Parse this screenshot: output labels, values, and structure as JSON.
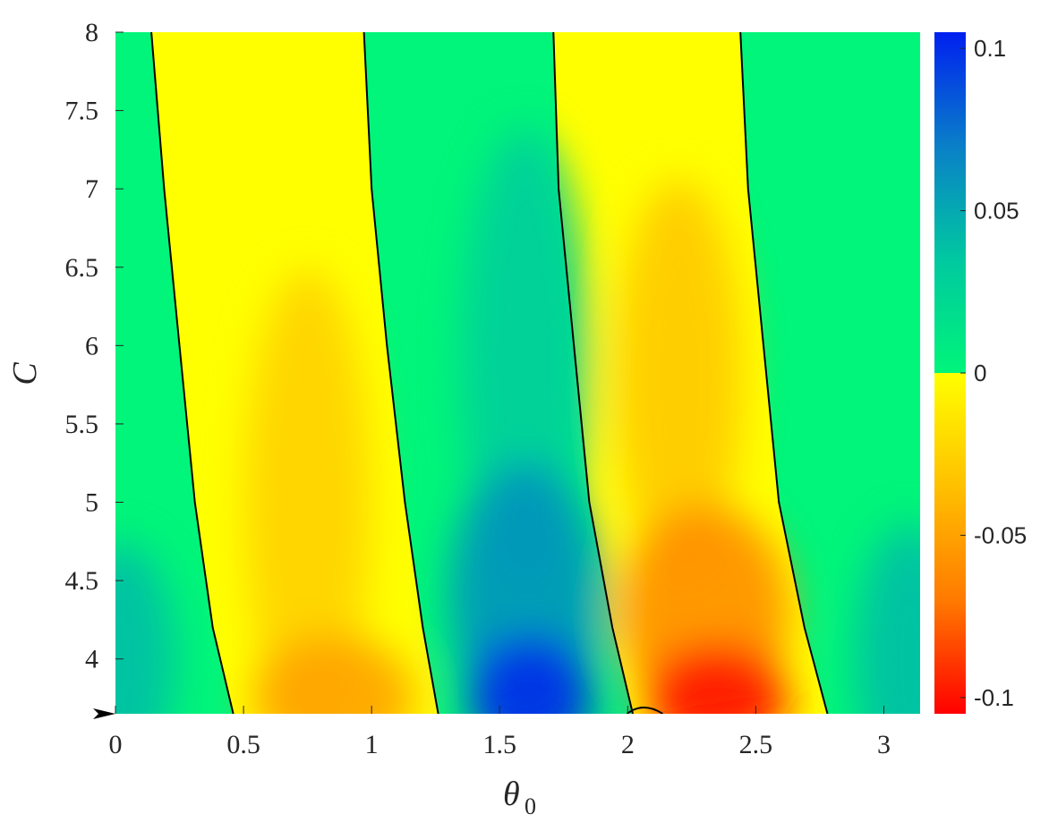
{
  "chart_data": {
    "type": "heatmap",
    "title": "",
    "xlabel": "θ",
    "xlabel_subscript": "0",
    "ylabel": "C",
    "xlim": [
      0,
      3.1416
    ],
    "ylim": [
      3.65,
      8
    ],
    "x_ticks": [
      "0",
      "0.5",
      "1",
      "1.5",
      "2",
      "2.5",
      "3"
    ],
    "x_tick_values": [
      0,
      0.5,
      1,
      1.5,
      2,
      2.5,
      3
    ],
    "y_ticks": [
      "4",
      "4.5",
      "5",
      "5.5",
      "6",
      "6.5",
      "7",
      "7.5",
      "8"
    ],
    "y_tick_values": [
      4,
      4.5,
      5,
      5.5,
      6,
      6.5,
      7,
      7.5,
      8
    ],
    "colorbar": {
      "range": [
        -0.105,
        0.105
      ],
      "ticks": [
        "0.1",
        "0.05",
        "0",
        "-0.05",
        "-0.1"
      ],
      "tick_values": [
        0.1,
        0.05,
        0,
        -0.05,
        -0.1
      ],
      "positive_colors": [
        "#00f57a",
        "#00c8a0",
        "#0a7fc8",
        "#0020f0"
      ],
      "negative_colors": [
        "#ffff00",
        "#ffc000",
        "#ff7a00",
        "#ff0000"
      ]
    },
    "zero_contours": [
      {
        "points": [
          [
            0.14,
            8
          ],
          [
            0.19,
            7
          ],
          [
            0.25,
            6
          ],
          [
            0.31,
            5
          ],
          [
            0.38,
            4.2
          ],
          [
            0.46,
            3.65
          ]
        ]
      },
      {
        "points": [
          [
            0.97,
            8
          ],
          [
            1.0,
            7
          ],
          [
            1.06,
            6
          ],
          [
            1.13,
            5
          ],
          [
            1.2,
            4.2
          ],
          [
            1.26,
            3.65
          ]
        ]
      },
      {
        "points": [
          [
            1.71,
            8
          ],
          [
            1.73,
            7
          ],
          [
            1.79,
            6
          ],
          [
            1.85,
            5
          ],
          [
            1.94,
            4.2
          ],
          [
            2.02,
            3.65
          ]
        ]
      },
      {
        "points": [
          [
            2.44,
            8
          ],
          [
            2.47,
            7
          ],
          [
            2.53,
            6
          ],
          [
            2.59,
            5
          ],
          [
            2.69,
            4.2
          ],
          [
            2.78,
            3.65
          ]
        ]
      }
    ],
    "field_peaks": [
      {
        "x": 1.62,
        "y": 3.75,
        "value": 0.1
      },
      {
        "x": 2.35,
        "y": 3.75,
        "value": -0.1
      },
      {
        "x": 0.85,
        "y": 3.75,
        "value": -0.05
      }
    ],
    "marker": {
      "y": 3.65,
      "shape": "arrowhead"
    }
  }
}
